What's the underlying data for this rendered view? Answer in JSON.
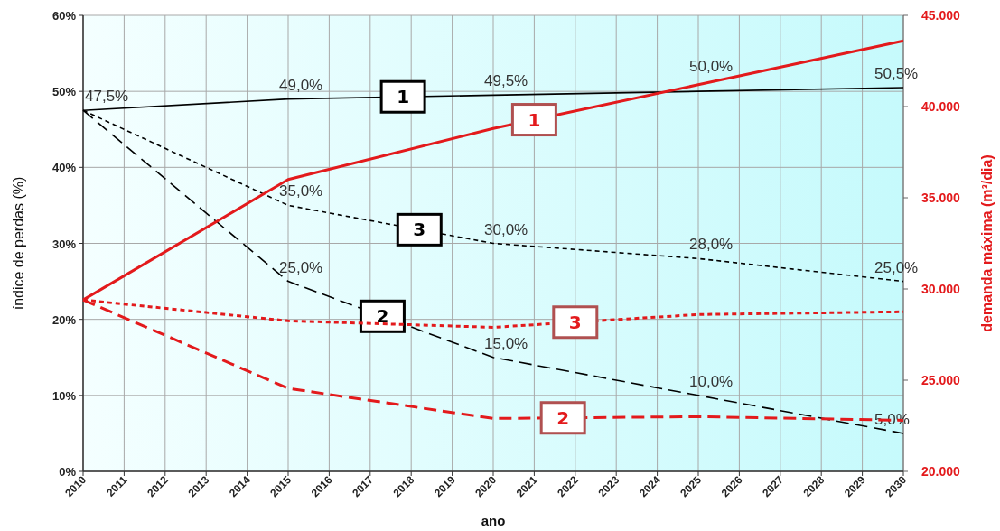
{
  "chart_data": {
    "type": "line",
    "xlabel": "ano",
    "ylabel": "índice de perdas (%)",
    "y2label": "demanda máxima (m³/dia)",
    "xlim": [
      2010,
      2030
    ],
    "xticks": [
      2010,
      2011,
      2012,
      2013,
      2014,
      2015,
      2016,
      2017,
      2018,
      2019,
      2020,
      2021,
      2022,
      2023,
      2024,
      2025,
      2026,
      2027,
      2028,
      2029,
      2030
    ],
    "ylim": [
      0,
      60
    ],
    "yticks": [
      {
        "value": 0,
        "label": "0%"
      },
      {
        "value": 10,
        "label": "10%"
      },
      {
        "value": 20,
        "label": "20%"
      },
      {
        "value": 30,
        "label": "30%"
      },
      {
        "value": 40,
        "label": "40%"
      },
      {
        "value": 50,
        "label": "50%"
      },
      {
        "value": 60,
        "label": "60%"
      }
    ],
    "y2lim": [
      20000,
      45000
    ],
    "y2ticks": [
      {
        "value": 20000,
        "label": "20.000"
      },
      {
        "value": 25000,
        "label": "25.000"
      },
      {
        "value": 30000,
        "label": "30.000"
      },
      {
        "value": 35000,
        "label": "35.000"
      },
      {
        "value": 40000,
        "label": "40.000"
      },
      {
        "value": 45000,
        "label": "45.000"
      }
    ],
    "grid": true,
    "marker": "none",
    "series": [
      {
        "name": "1",
        "color": "#000000",
        "line_style": "solid",
        "x": [
          2010,
          2015,
          2020,
          2025,
          2030
        ],
        "values": [
          47.5,
          49.0,
          49.5,
          50.0,
          50.5
        ],
        "value_labels": [
          "47,5%",
          "49,0%",
          "49,5%",
          "50,0%",
          "50,5%"
        ]
      },
      {
        "name": "2",
        "color": "#000000",
        "line_style": "dashed",
        "x": [
          2010,
          2015,
          2020,
          2025,
          2030
        ],
        "values": [
          47.5,
          25.0,
          15.0,
          10.0,
          5.0
        ],
        "value_labels": [
          null,
          "25,0%",
          "15,0%",
          "10,0%",
          "5,0%"
        ]
      },
      {
        "name": "3",
        "color": "#000000",
        "line_style": "dotted",
        "x": [
          2010,
          2015,
          2020,
          2025,
          2030
        ],
        "values": [
          47.5,
          35.0,
          30.0,
          28.0,
          25.0
        ],
        "value_labels": [
          null,
          "35,0%",
          "30,0%",
          "28,0%",
          "25,0%"
        ]
      },
      {
        "name": "1",
        "color": "#e31a1c",
        "axis": "y2",
        "line_style": "solid",
        "x": [
          2010,
          2015,
          2020,
          2025,
          2030
        ],
        "values": [
          29400,
          36000,
          38800,
          41200,
          43600
        ]
      },
      {
        "name": "2",
        "color": "#e31a1c",
        "axis": "y2",
        "line_style": "dashed",
        "x": [
          2010,
          2015,
          2020,
          2025,
          2030
        ],
        "values": [
          29400,
          24550,
          22900,
          23000,
          22800
        ]
      },
      {
        "name": "3",
        "color": "#e31a1c",
        "axis": "y2",
        "line_style": "dotted",
        "x": [
          2010,
          2015,
          2020,
          2025,
          2030
        ],
        "values": [
          29400,
          28250,
          27900,
          28600,
          28750
        ]
      }
    ]
  }
}
